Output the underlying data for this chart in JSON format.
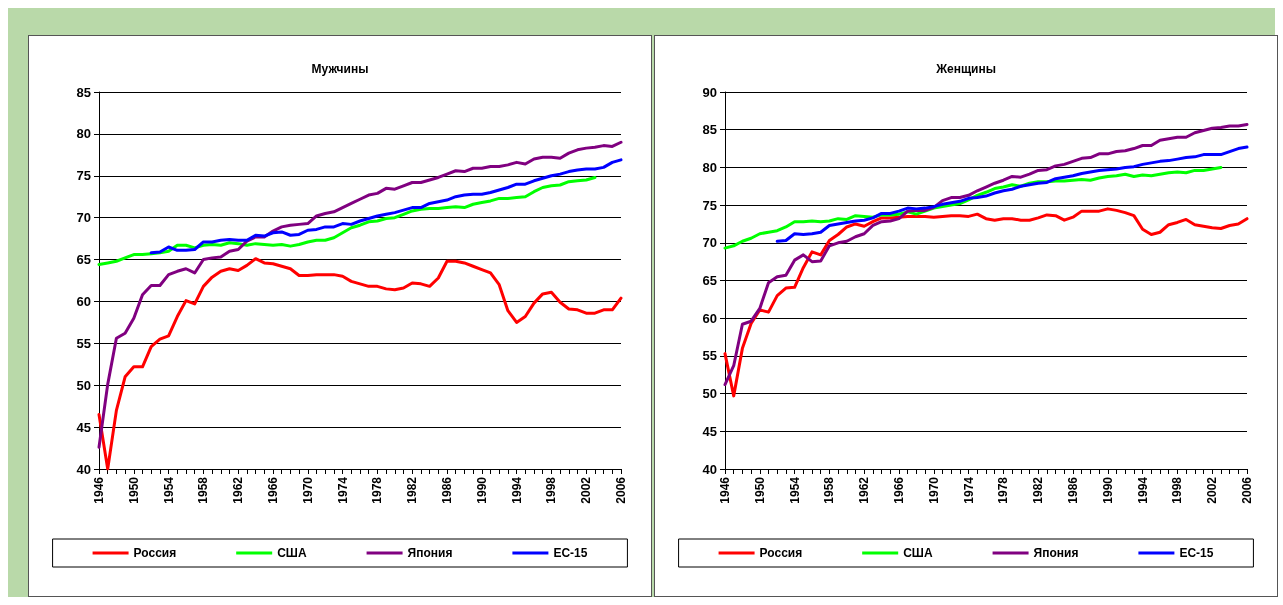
{
  "chart_data": [
    {
      "type": "line",
      "title": "Мужчины",
      "categories": [
        "1946",
        null,
        null,
        null,
        "1950",
        null,
        null,
        null,
        "1954",
        null,
        null,
        null,
        "1958",
        null,
        null,
        null,
        "1962",
        null,
        null,
        null,
        "1966",
        null,
        null,
        null,
        "1970",
        null,
        null,
        null,
        "1974",
        null,
        null,
        null,
        "1978",
        null,
        null,
        null,
        "1982",
        null,
        null,
        null,
        "1986",
        null,
        null,
        null,
        "1990",
        null,
        null,
        null,
        "1994",
        null,
        null,
        null,
        "1998",
        null,
        null,
        null,
        "2002",
        null,
        null,
        null,
        "2006"
      ],
      "series": [
        {
          "name": "Россия",
          "color": "#ff0000",
          "values": [
            46.5,
            40,
            47,
            51,
            52.2,
            52.2,
            54.6,
            55.5,
            55.9,
            58.2,
            60.1,
            59.7,
            61.8,
            62.9,
            63.6,
            63.9,
            63.7,
            64.3,
            65.1,
            64.6,
            64.5,
            64.2,
            63.9,
            63.1,
            63.1,
            63.2,
            63.2,
            63.2,
            63.0,
            62.4,
            62.1,
            61.8,
            61.8,
            61.5,
            61.4,
            61.6,
            62.2,
            62.1,
            61.8,
            62.8,
            64.8,
            64.8,
            64.6,
            64.2,
            63.8,
            63.4,
            62.0,
            58.9,
            57.5,
            58.2,
            59.8,
            60.9,
            61.1,
            59.9,
            59.1,
            59.0,
            58.6,
            58.6,
            59.0,
            59.0,
            60.4
          ]
        },
        {
          "name": "США",
          "color": "#00ff00",
          "values": [
            64.4,
            64.6,
            64.8,
            65.2,
            65.6,
            65.6,
            65.7,
            65.8,
            66.0,
            66.7,
            66.7,
            66.4,
            66.7,
            66.8,
            66.7,
            67.0,
            66.9,
            66.7,
            66.9,
            66.8,
            66.7,
            66.8,
            66.6,
            66.8,
            67.1,
            67.3,
            67.3,
            67.6,
            68.2,
            68.8,
            69.1,
            69.5,
            69.6,
            69.9,
            70.0,
            70.4,
            70.8,
            71.0,
            71.1,
            71.1,
            71.2,
            71.3,
            71.2,
            71.6,
            71.8,
            72.0,
            72.3,
            72.3,
            72.4,
            72.5,
            73.1,
            73.6,
            73.8,
            73.9,
            74.3,
            74.4,
            74.5,
            74.8,
            null,
            null,
            null
          ]
        },
        {
          "name": "Япония",
          "color": "#800080",
          "values": [
            42.6,
            50.1,
            55.6,
            56.2,
            58.0,
            60.8,
            61.9,
            61.9,
            63.2,
            63.6,
            63.9,
            63.4,
            65.0,
            65.2,
            65.3,
            66.0,
            66.2,
            67.2,
            67.7,
            67.7,
            68.4,
            68.9,
            69.1,
            69.2,
            69.3,
            70.2,
            70.5,
            70.7,
            71.2,
            71.7,
            72.2,
            72.7,
            72.9,
            73.5,
            73.4,
            73.8,
            74.2,
            74.2,
            74.5,
            74.8,
            75.2,
            75.6,
            75.5,
            75.9,
            75.9,
            76.1,
            76.1,
            76.3,
            76.6,
            76.4,
            77.0,
            77.2,
            77.2,
            77.1,
            77.7,
            78.1,
            78.3,
            78.4,
            78.6,
            78.5,
            79.0
          ]
        },
        {
          "name": "ЕС-15",
          "color": "#0000ff",
          "values": [
            null,
            null,
            null,
            null,
            null,
            null,
            65.8,
            65.9,
            66.5,
            66.1,
            66.1,
            66.2,
            67.1,
            67.1,
            67.3,
            67.4,
            67.3,
            67.3,
            67.9,
            67.8,
            68.2,
            68.3,
            67.9,
            68.0,
            68.5,
            68.6,
            68.9,
            68.9,
            69.3,
            69.2,
            69.6,
            69.9,
            70.2,
            70.4,
            70.6,
            70.9,
            71.2,
            71.2,
            71.7,
            71.9,
            72.1,
            72.5,
            72.7,
            72.8,
            72.8,
            73.0,
            73.3,
            73.6,
            74.0,
            74.0,
            74.4,
            74.7,
            75.0,
            75.2,
            75.5,
            75.7,
            75.8,
            75.8,
            76.0,
            76.6,
            76.9
          ]
        }
      ],
      "ylim": [
        40,
        85
      ],
      "yticks": [
        40,
        45,
        50,
        55,
        60,
        65,
        70,
        75,
        80,
        85
      ],
      "grid": "y",
      "legend": "bottom",
      "marker": "none",
      "line_style": "solid"
    },
    {
      "type": "line",
      "title": "Женщины",
      "categories": [
        "1946",
        null,
        null,
        null,
        "1950",
        null,
        null,
        null,
        "1954",
        null,
        null,
        null,
        "1958",
        null,
        null,
        null,
        "1962",
        null,
        null,
        null,
        "1966",
        null,
        null,
        null,
        "1970",
        null,
        null,
        null,
        "1974",
        null,
        null,
        null,
        "1978",
        null,
        null,
        null,
        "1982",
        null,
        null,
        null,
        "1986",
        null,
        null,
        null,
        "1990",
        null,
        null,
        null,
        "1994",
        null,
        null,
        null,
        "1998",
        null,
        null,
        null,
        "2002",
        null,
        null,
        null,
        "2006"
      ],
      "series": [
        {
          "name": "Россия",
          "color": "#ff0000",
          "values": [
            55.3,
            49.7,
            56.0,
            59.3,
            61.1,
            60.8,
            63.0,
            64.0,
            64.1,
            66.7,
            68.8,
            68.4,
            70.3,
            71.1,
            72.1,
            72.5,
            72.2,
            72.8,
            73.3,
            73.3,
            73.4,
            73.5,
            73.5,
            73.5,
            73.4,
            73.5,
            73.6,
            73.6,
            73.5,
            73.8,
            73.2,
            73.0,
            73.2,
            73.2,
            73.0,
            73.0,
            73.3,
            73.7,
            73.6,
            73.0,
            73.4,
            74.2,
            74.2,
            74.2,
            74.5,
            74.3,
            74.0,
            73.6,
            71.8,
            71.1,
            71.4,
            72.4,
            72.7,
            73.1,
            72.4,
            72.2,
            72.0,
            71.9,
            72.3,
            72.5,
            73.2
          ]
        },
        {
          "name": "США",
          "color": "#00ff00",
          "values": [
            69.3,
            69.6,
            70.2,
            70.6,
            71.2,
            71.4,
            71.6,
            72.1,
            72.8,
            72.8,
            72.9,
            72.8,
            72.9,
            73.2,
            73.1,
            73.6,
            73.5,
            73.4,
            73.7,
            73.7,
            73.8,
            74.1,
            73.8,
            74.2,
            74.6,
            74.8,
            75.0,
            75.2,
            75.7,
            76.3,
            76.7,
            77.2,
            77.4,
            77.7,
            77.5,
            77.9,
            78.1,
            78.1,
            78.2,
            78.2,
            78.3,
            78.4,
            78.3,
            78.6,
            78.8,
            78.9,
            79.1,
            78.8,
            79.0,
            78.9,
            79.1,
            79.3,
            79.4,
            79.3,
            79.6,
            79.6,
            79.8,
            80.0,
            null,
            null,
            null
          ]
        },
        {
          "name": "Япония",
          "color": "#800080",
          "values": [
            51.2,
            53.7,
            59.2,
            59.6,
            61.3,
            64.7,
            65.5,
            65.7,
            67.7,
            68.4,
            67.5,
            67.6,
            69.6,
            70.0,
            70.2,
            70.8,
            71.2,
            72.3,
            72.8,
            72.9,
            73.2,
            74.2,
            74.3,
            74.3,
            74.7,
            75.6,
            76.0,
            76.0,
            76.3,
            76.9,
            77.4,
            77.9,
            78.3,
            78.8,
            78.7,
            79.1,
            79.6,
            79.7,
            80.2,
            80.4,
            80.8,
            81.2,
            81.3,
            81.8,
            81.8,
            82.1,
            82.2,
            82.5,
            82.9,
            82.9,
            83.6,
            83.8,
            84.0,
            84.0,
            84.6,
            84.9,
            85.2,
            85.3,
            85.5,
            85.5,
            85.7
          ]
        },
        {
          "name": "ЕС-15",
          "color": "#0000ff",
          "values": [
            null,
            null,
            null,
            null,
            null,
            null,
            70.2,
            70.3,
            71.2,
            71.1,
            71.2,
            71.4,
            72.3,
            72.5,
            72.7,
            72.9,
            73.0,
            73.3,
            73.9,
            73.9,
            74.2,
            74.6,
            74.5,
            74.6,
            74.8,
            75.1,
            75.3,
            75.5,
            75.9,
            76.0,
            76.2,
            76.6,
            76.9,
            77.1,
            77.5,
            77.7,
            77.9,
            78.0,
            78.5,
            78.7,
            78.9,
            79.2,
            79.4,
            79.6,
            79.7,
            79.8,
            80.0,
            80.1,
            80.4,
            80.6,
            80.8,
            80.9,
            81.1,
            81.3,
            81.4,
            81.7,
            81.7,
            81.7,
            82.1,
            82.5,
            82.7
          ]
        }
      ],
      "ylim": [
        40,
        90
      ],
      "yticks": [
        40,
        45,
        50,
        55,
        60,
        65,
        70,
        75,
        80,
        85,
        90
      ],
      "grid": "y",
      "legend": "bottom",
      "marker": "none",
      "line_style": "solid"
    }
  ]
}
